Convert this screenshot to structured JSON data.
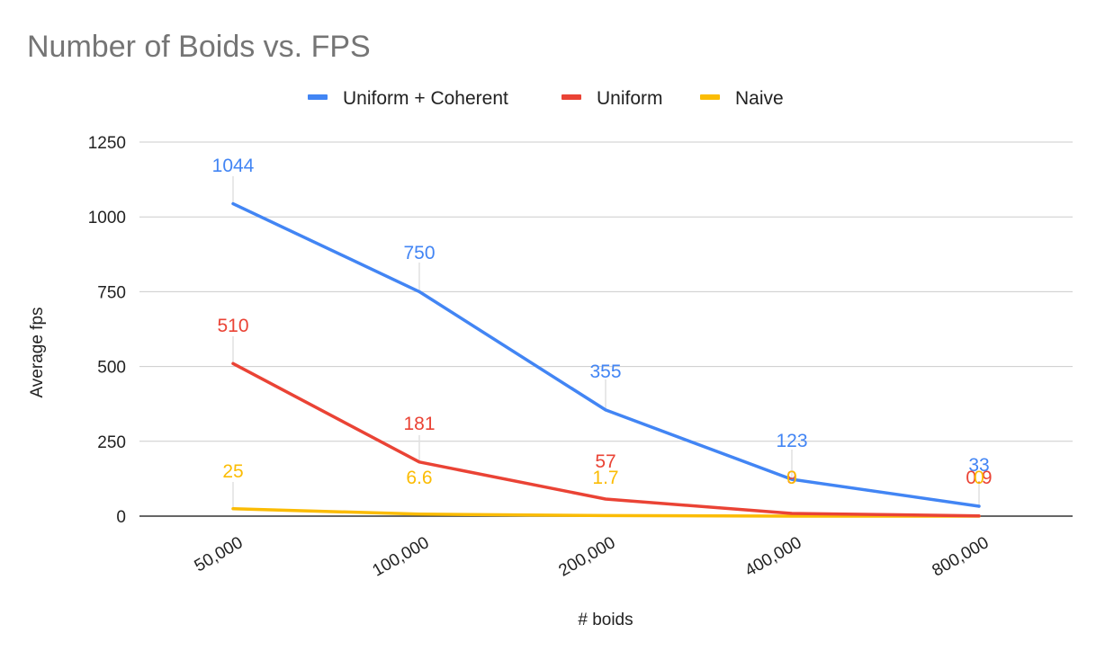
{
  "chart_data": {
    "type": "line",
    "title": "Number of Boids vs. FPS",
    "xlabel": "# boids",
    "ylabel": "Average fps",
    "categories": [
      "50,000",
      "100,000",
      "200,000",
      "400,000",
      "800,000"
    ],
    "ylim": [
      0,
      1250
    ],
    "yticks": [
      "0",
      "250",
      "500",
      "750",
      "1000",
      "1250"
    ],
    "grid": true,
    "legend_position": "top",
    "series": [
      {
        "name": "Uniform + Coherent",
        "color": "#4285f4",
        "values": [
          1044,
          750,
          355,
          123,
          33
        ],
        "labels": [
          "1044",
          "750",
          "355",
          "123",
          "33"
        ]
      },
      {
        "name": "Uniform",
        "color": "#ea4335",
        "values": [
          510,
          181,
          57,
          9,
          0.9
        ],
        "labels": [
          "510",
          "181",
          "57",
          "9",
          "0.9"
        ]
      },
      {
        "name": "Naive",
        "color": "#fbbc04",
        "values": [
          25,
          6.6,
          1.7,
          0,
          0
        ],
        "labels": [
          "25",
          "6.6",
          "1.7",
          "0",
          "0"
        ]
      }
    ]
  }
}
